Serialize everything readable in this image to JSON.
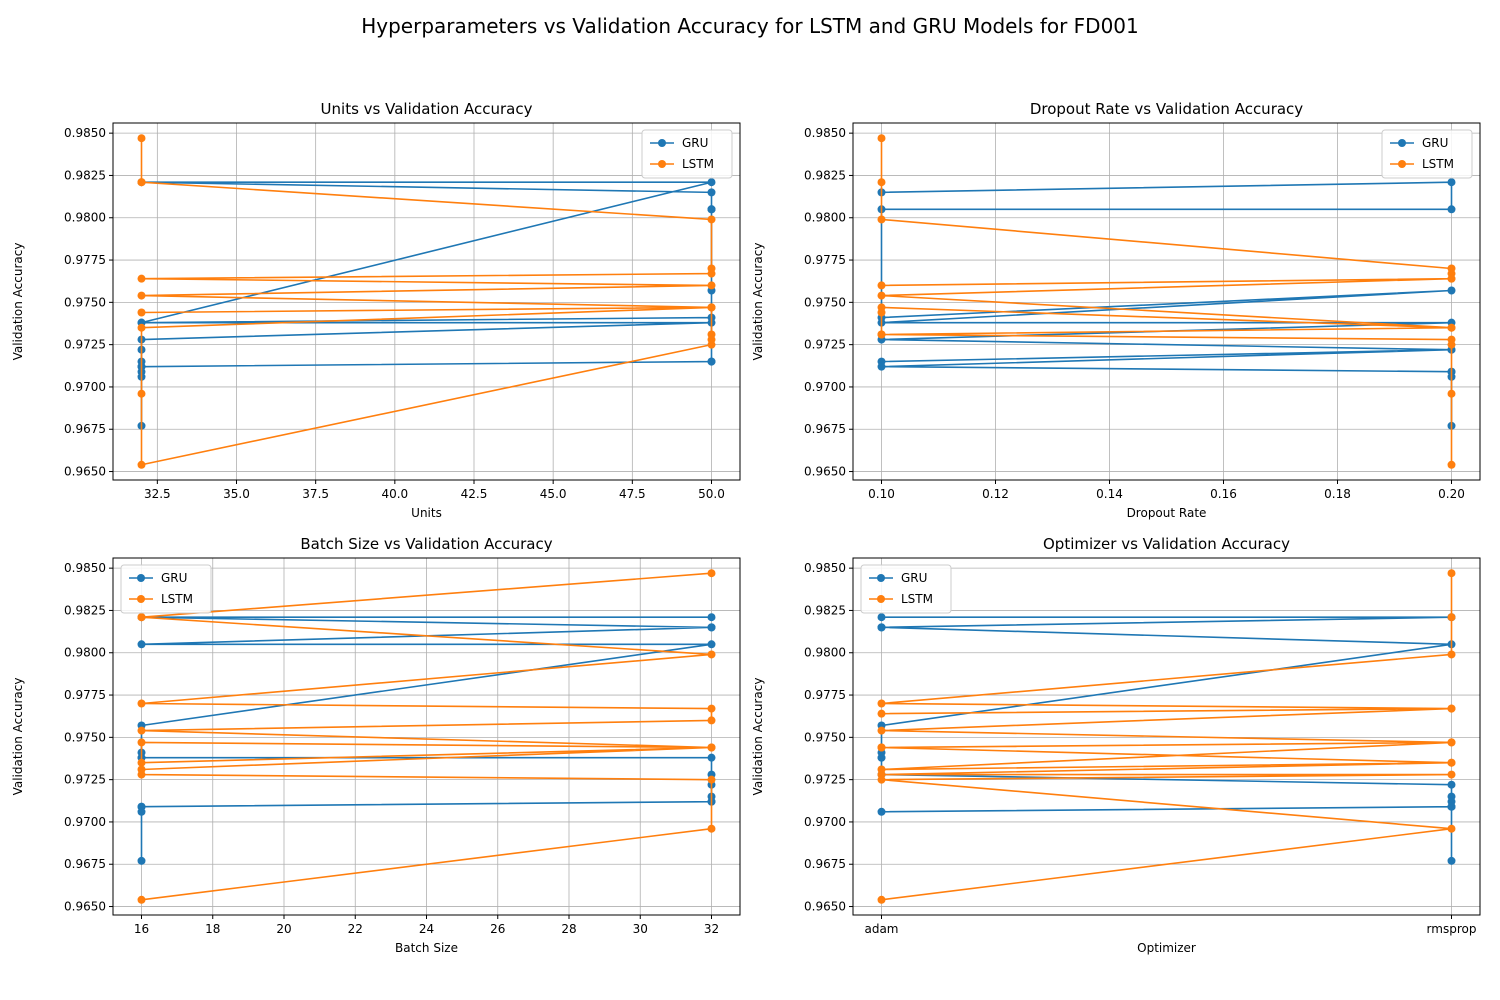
{
  "figure": {
    "title": "Hyperparameters vs Validation Accuracy for LSTM and GRU Models for FD001"
  },
  "series_style": {
    "GRU": "#1f77b4",
    "LSTM": "#ff7f0e"
  },
  "chart_data": [
    {
      "type": "line",
      "title": "Units vs Validation Accuracy",
      "xlabel": "Units",
      "ylabel": "Validation Accuracy",
      "xlim": [
        31.1,
        50.9
      ],
      "ylim": [
        0.9645,
        0.9856
      ],
      "xticks": [
        32.5,
        35.0,
        37.5,
        40.0,
        42.5,
        45.0,
        47.5,
        50.0
      ],
      "xtick_labels": [
        "32.5",
        "35.0",
        "37.5",
        "40.0",
        "42.5",
        "45.0",
        "47.5",
        "50.0"
      ],
      "yticks": [
        0.965,
        0.9675,
        0.97,
        0.9725,
        0.975,
        0.9775,
        0.98,
        0.9825,
        0.985
      ],
      "ytick_labels": [
        "0.9650",
        "0.9675",
        "0.9700",
        "0.9725",
        "0.9750",
        "0.9775",
        "0.9800",
        "0.9825",
        "0.9850"
      ],
      "grid": true,
      "legend": "upper-right",
      "series": [
        {
          "name": "GRU",
          "x": [
            50,
            50,
            32,
            50,
            32,
            50,
            32,
            50,
            32,
            32,
            32,
            32,
            32,
            32,
            32,
            32,
            50,
            50,
            50,
            50,
            50
          ],
          "y": [
            0.9805,
            0.9815,
            0.9821,
            0.9821,
            0.9738,
            0.9741,
            0.9738,
            0.9738,
            0.9728,
            0.9722,
            0.9715,
            0.9712,
            0.9709,
            0.9706,
            0.9677,
            0.9712,
            0.9715,
            0.9715,
            0.9757,
            0.9805,
            0.9805
          ]
        },
        {
          "name": "LSTM",
          "x": [
            32,
            32,
            32,
            50,
            50,
            50,
            32,
            50,
            32,
            50,
            32,
            50,
            32,
            32,
            32,
            50,
            50,
            50,
            50
          ],
          "y": [
            0.9847,
            0.9821,
            0.9821,
            0.9799,
            0.977,
            0.9767,
            0.9764,
            0.976,
            0.9754,
            0.9747,
            0.9744,
            0.9747,
            0.9735,
            0.9696,
            0.9654,
            0.9725,
            0.9728,
            0.9731,
            0.9747
          ]
        }
      ]
    },
    {
      "type": "line",
      "title": "Dropout Rate vs Validation Accuracy",
      "xlabel": "Dropout Rate",
      "ylabel": "Validation Accuracy",
      "xlim": [
        0.095,
        0.205
      ],
      "ylim": [
        0.9645,
        0.9856
      ],
      "xticks": [
        0.1,
        0.12,
        0.14,
        0.16,
        0.18,
        0.2
      ],
      "xtick_labels": [
        "0.10",
        "0.12",
        "0.14",
        "0.16",
        "0.18",
        "0.20"
      ],
      "yticks": [
        0.965,
        0.9675,
        0.97,
        0.9725,
        0.975,
        0.9775,
        0.98,
        0.9825,
        0.985
      ],
      "ytick_labels": [
        "0.9650",
        "0.9675",
        "0.9700",
        "0.9725",
        "0.9750",
        "0.9775",
        "0.9800",
        "0.9825",
        "0.9850"
      ],
      "grid": true,
      "legend": "upper-right",
      "series": [
        {
          "name": "GRU",
          "x": [
            0.1,
            0.2,
            0.2,
            0.1,
            0.1,
            0.2,
            0.1,
            0.2,
            0.1,
            0.2,
            0.1,
            0.2,
            0.1,
            0.2,
            0.2,
            0.2,
            0.2
          ],
          "y": [
            0.9815,
            0.9821,
            0.9805,
            0.9805,
            0.9741,
            0.9757,
            0.9738,
            0.9738,
            0.9728,
            0.9722,
            0.9715,
            0.9722,
            0.9712,
            0.9709,
            0.9709,
            0.9706,
            0.9677
          ]
        },
        {
          "name": "LSTM",
          "x": [
            0.1,
            0.1,
            0.1,
            0.2,
            0.2,
            0.2,
            0.1,
            0.2,
            0.1,
            0.2,
            0.1,
            0.1,
            0.1,
            0.2,
            0.1,
            0.2,
            0.2,
            0.2,
            0.2
          ],
          "y": [
            0.9847,
            0.9821,
            0.9799,
            0.977,
            0.9767,
            0.9764,
            0.976,
            0.9764,
            0.9754,
            0.9735,
            0.9747,
            0.9744,
            0.9731,
            0.9735,
            0.9731,
            0.9728,
            0.9725,
            0.9696,
            0.9654
          ]
        }
      ]
    },
    {
      "type": "line",
      "title": "Batch Size vs Validation Accuracy",
      "xlabel": "Batch Size",
      "ylabel": "Validation Accuracy",
      "xlim": [
        15.2,
        32.8
      ],
      "ylim": [
        0.9645,
        0.9856
      ],
      "xticks": [
        16,
        18,
        20,
        22,
        24,
        26,
        28,
        30,
        32
      ],
      "xtick_labels": [
        "16",
        "18",
        "20",
        "22",
        "24",
        "26",
        "28",
        "30",
        "32"
      ],
      "yticks": [
        0.965,
        0.9675,
        0.97,
        0.9725,
        0.975,
        0.9775,
        0.98,
        0.9825,
        0.985
      ],
      "ytick_labels": [
        "0.9650",
        "0.9675",
        "0.9700",
        "0.9725",
        "0.9750",
        "0.9775",
        "0.9800",
        "0.9825",
        "0.9850"
      ],
      "grid": true,
      "legend": "upper-left",
      "series": [
        {
          "name": "GRU",
          "x": [
            32,
            16,
            32,
            32,
            16,
            32,
            16,
            16,
            16,
            16,
            32,
            32,
            32,
            32,
            32,
            16,
            32,
            16,
            16,
            16
          ],
          "y": [
            0.9821,
            0.9821,
            0.9815,
            0.9815,
            0.9805,
            0.9805,
            0.9757,
            0.9741,
            0.9738,
            0.9738,
            0.9738,
            0.9728,
            0.9722,
            0.9715,
            0.9712,
            0.9709,
            0.9712,
            0.9709,
            0.9706,
            0.9677
          ]
        },
        {
          "name": "LSTM",
          "x": [
            32,
            16,
            16,
            32,
            16,
            32,
            32,
            16,
            32,
            16,
            16,
            32,
            16,
            16,
            32,
            32,
            16
          ],
          "y": [
            0.9847,
            0.9821,
            0.9821,
            0.9799,
            0.977,
            0.9767,
            0.976,
            0.9754,
            0.9744,
            0.9747,
            0.9735,
            0.9744,
            0.9731,
            0.9728,
            0.9725,
            0.9696,
            0.9654
          ]
        }
      ]
    },
    {
      "type": "line",
      "title": "Optimizer vs Validation Accuracy",
      "xlabel": "Optimizer",
      "ylabel": "Validation Accuracy",
      "xlim": [
        -0.05,
        1.05
      ],
      "ylim": [
        0.9645,
        0.9856
      ],
      "xticks": [
        0,
        1
      ],
      "xtick_labels": [
        "adam",
        "rmsprop"
      ],
      "yticks": [
        0.965,
        0.9675,
        0.97,
        0.9725,
        0.975,
        0.9775,
        0.98,
        0.9825,
        0.985
      ],
      "ytick_labels": [
        "0.9650",
        "0.9675",
        "0.9700",
        "0.9725",
        "0.9750",
        "0.9775",
        "0.9800",
        "0.9825",
        "0.9850"
      ],
      "grid": true,
      "legend": "upper-left",
      "series": [
        {
          "name": "GRU",
          "x": [
            0,
            1,
            1,
            0,
            0,
            1,
            0,
            0,
            0,
            0,
            0,
            1,
            1,
            1,
            1,
            1,
            0,
            1,
            1
          ],
          "y": [
            0.9821,
            0.9821,
            0.9821,
            0.9815,
            0.9815,
            0.9805,
            0.9757,
            0.9741,
            0.9738,
            0.9738,
            0.9728,
            0.9722,
            0.9715,
            0.9712,
            0.9709,
            0.9709,
            0.9706,
            0.9709,
            0.9677
          ]
        },
        {
          "name": "LSTM",
          "x": [
            1,
            1,
            1,
            0,
            1,
            0,
            1,
            0,
            1,
            0,
            1,
            0,
            1,
            0,
            1,
            0,
            1,
            0,
            1,
            0
          ],
          "y": [
            0.9847,
            0.9821,
            0.9799,
            0.977,
            0.9767,
            0.9764,
            0.9767,
            0.9754,
            0.9747,
            0.9744,
            0.9735,
            0.9744,
            0.9747,
            0.9731,
            0.9735,
            0.9728,
            0.9728,
            0.9725,
            0.9696,
            0.9654
          ]
        }
      ]
    }
  ]
}
